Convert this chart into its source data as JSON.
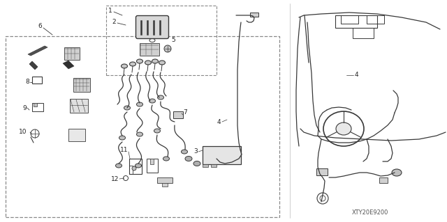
{
  "bg_color": "#ffffff",
  "lc": "#383838",
  "dc": "#888888",
  "lbl": "#222222",
  "fig_width": 6.4,
  "fig_height": 3.19,
  "watermark": "XTY20E9200",
  "dpi": 100
}
